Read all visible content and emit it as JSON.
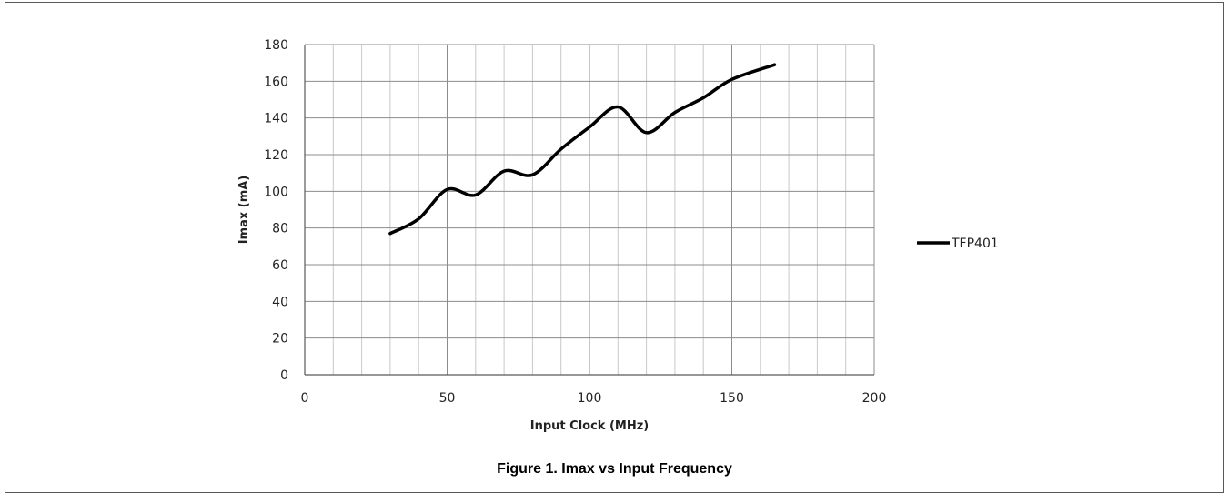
{
  "chart_data": {
    "type": "line",
    "title": "",
    "xlabel": "Input Clock (MHz)",
    "ylabel": "Imax (mA)",
    "xlim": [
      0,
      200
    ],
    "ylim": [
      0,
      180
    ],
    "x_ticks": [
      0,
      50,
      100,
      150,
      200
    ],
    "y_ticks": [
      0,
      20,
      40,
      60,
      80,
      100,
      120,
      140,
      160,
      180
    ],
    "grid": true,
    "legend_position": "right",
    "series": [
      {
        "name": "TFP401",
        "color": "#000000",
        "x": [
          30,
          40,
          50,
          60,
          70,
          80,
          90,
          100,
          110,
          120,
          130,
          140,
          150,
          165
        ],
        "y": [
          77,
          85,
          101,
          98,
          111,
          109,
          123,
          135,
          146,
          132,
          143,
          151,
          161,
          169
        ]
      }
    ]
  },
  "caption": "Figure 1. Imax vs Input Frequency"
}
